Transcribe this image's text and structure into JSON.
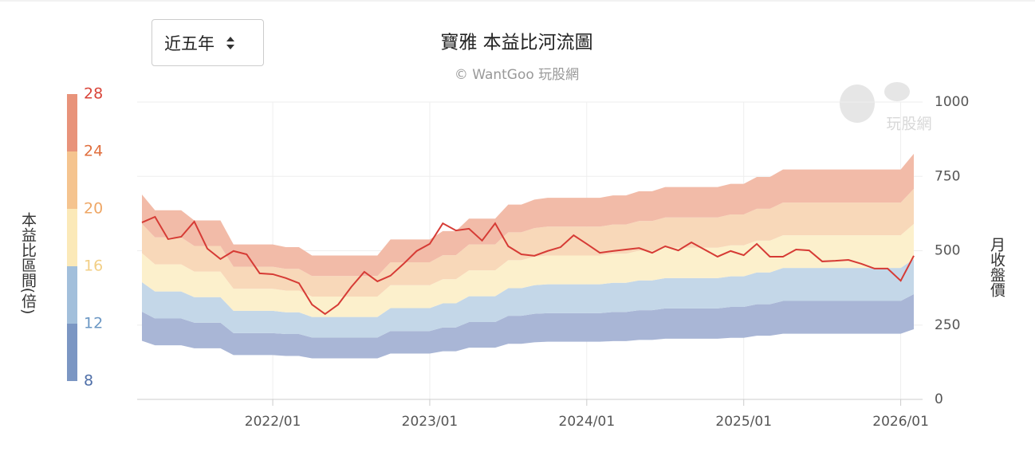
{
  "dropdown": {
    "label": "近五年"
  },
  "chart_data": {
    "type": "river",
    "title": "寶雅 本益比河流圖",
    "subtitle": "© WantGoo 玩股網",
    "watermark": "玩股網",
    "band_axis_label": "本益比區間(倍)",
    "y_label": "月收盤價",
    "x": [
      "2021/03",
      "2021/04",
      "2021/05",
      "2021/06",
      "2021/07",
      "2021/08",
      "2021/09",
      "2021/10",
      "2021/11",
      "2021/12",
      "2022/01",
      "2022/02",
      "2022/03",
      "2022/04",
      "2022/05",
      "2022/06",
      "2022/07",
      "2022/08",
      "2022/09",
      "2022/10",
      "2022/11",
      "2022/12",
      "2023/01",
      "2023/02",
      "2023/03",
      "2023/04",
      "2023/05",
      "2023/06",
      "2023/07",
      "2023/08",
      "2023/09",
      "2023/10",
      "2023/11",
      "2023/12",
      "2024/01",
      "2024/02",
      "2024/03",
      "2024/04",
      "2024/05",
      "2024/06",
      "2024/07",
      "2024/08",
      "2024/09",
      "2024/10",
      "2024/11",
      "2024/12",
      "2025/01",
      "2025/02",
      "2025/03",
      "2025/04",
      "2025/05",
      "2025/06",
      "2025/07",
      "2025/08",
      "2025/09",
      "2025/10",
      "2025/11",
      "2025/12",
      "2026/01",
      "2026/02"
    ],
    "xticks": [
      "2022/01",
      "2023/01",
      "2024/01",
      "2025/01",
      "2026/01"
    ],
    "ylim": [
      0,
      1000
    ],
    "yticks": [
      0,
      250,
      500,
      750,
      1000
    ],
    "grid": true,
    "multiples": [
      8,
      12,
      16,
      20,
      24,
      28
    ],
    "multiple_label_colors": [
      "#4f6fa8",
      "#6b97c4",
      "#f2cf86",
      "#eea766",
      "#e06f3e",
      "#d9453a"
    ],
    "legend_colors": [
      "#7b96c3",
      "#a2bfdb",
      "#fbe9b8",
      "#f5c48f",
      "#e8937a"
    ],
    "band_colors": [
      "#a9b6d6",
      "#c4d7e8",
      "#fcf0cc",
      "#f8d8b9",
      "#f2bba8"
    ],
    "band_lines": [
      [
        197,
        182,
        182,
        182,
        172,
        172,
        172,
        149,
        149,
        149,
        149,
        146,
        146,
        138,
        138,
        138,
        138,
        138,
        138,
        154,
        154,
        154,
        154,
        162,
        162,
        174,
        174,
        174,
        187,
        187,
        192,
        194,
        194,
        194,
        194,
        194,
        196,
        196,
        200,
        200,
        204,
        204,
        204,
        204,
        204,
        207,
        207,
        214,
        214,
        221,
        221,
        221,
        221,
        221,
        221,
        221,
        221,
        221,
        221,
        236
      ],
      [
        295,
        272,
        272,
        272,
        258,
        258,
        258,
        223,
        223,
        223,
        223,
        220,
        220,
        208,
        208,
        208,
        208,
        208,
        208,
        230,
        230,
        230,
        230,
        242,
        242,
        260,
        260,
        260,
        281,
        281,
        288,
        290,
        290,
        290,
        290,
        290,
        294,
        294,
        300,
        300,
        306,
        306,
        306,
        306,
        306,
        311,
        311,
        320,
        320,
        331,
        331,
        331,
        331,
        331,
        331,
        331,
        331,
        331,
        331,
        354
      ],
      [
        394,
        363,
        363,
        363,
        344,
        344,
        344,
        298,
        298,
        298,
        298,
        293,
        293,
        277,
        277,
        277,
        277,
        277,
        277,
        307,
        307,
        307,
        307,
        323,
        323,
        347,
        347,
        347,
        374,
        374,
        384,
        387,
        387,
        387,
        387,
        387,
        392,
        392,
        400,
        400,
        408,
        408,
        408,
        408,
        408,
        414,
        414,
        427,
        427,
        442,
        442,
        442,
        442,
        442,
        442,
        442,
        442,
        442,
        442,
        472
      ],
      [
        492,
        454,
        454,
        454,
        430,
        430,
        430,
        372,
        372,
        372,
        372,
        366,
        366,
        346,
        346,
        346,
        346,
        346,
        346,
        384,
        384,
        384,
        384,
        404,
        404,
        434,
        434,
        434,
        468,
        468,
        480,
        484,
        484,
        484,
        484,
        484,
        490,
        490,
        500,
        500,
        510,
        510,
        510,
        510,
        510,
        518,
        518,
        534,
        534,
        552,
        552,
        552,
        552,
        552,
        552,
        552,
        552,
        552,
        552,
        590
      ],
      [
        590,
        545,
        545,
        545,
        516,
        516,
        516,
        446,
        446,
        446,
        446,
        439,
        439,
        415,
        415,
        415,
        415,
        415,
        415,
        461,
        461,
        461,
        461,
        485,
        485,
        521,
        521,
        521,
        562,
        562,
        576,
        581,
        581,
        581,
        581,
        581,
        588,
        588,
        600,
        600,
        612,
        612,
        612,
        612,
        612,
        622,
        622,
        641,
        641,
        662,
        662,
        662,
        662,
        662,
        662,
        662,
        662,
        662,
        662,
        708
      ],
      [
        689,
        636,
        636,
        636,
        602,
        602,
        602,
        521,
        521,
        521,
        521,
        512,
        512,
        484,
        484,
        484,
        484,
        484,
        484,
        538,
        538,
        538,
        538,
        566,
        566,
        608,
        608,
        608,
        655,
        655,
        672,
        678,
        678,
        678,
        678,
        678,
        686,
        686,
        700,
        700,
        714,
        714,
        714,
        714,
        714,
        725,
        725,
        748,
        748,
        773,
        773,
        773,
        773,
        773,
        773,
        773,
        773,
        773,
        773,
        826
      ]
    ],
    "price": {
      "color": "#d63b35",
      "values": [
        595,
        614,
        539,
        547,
        598,
        507,
        472,
        499,
        488,
        424,
        421,
        408,
        391,
        319,
        287,
        319,
        378,
        429,
        397,
        416,
        456,
        499,
        523,
        592,
        568,
        574,
        534,
        592,
        515,
        488,
        483,
        499,
        512,
        552,
        523,
        493,
        499,
        504,
        509,
        493,
        515,
        501,
        528,
        504,
        480,
        499,
        485,
        523,
        480,
        480,
        504,
        501,
        464,
        466,
        469,
        456,
        440,
        440,
        399,
        483
      ]
    }
  }
}
